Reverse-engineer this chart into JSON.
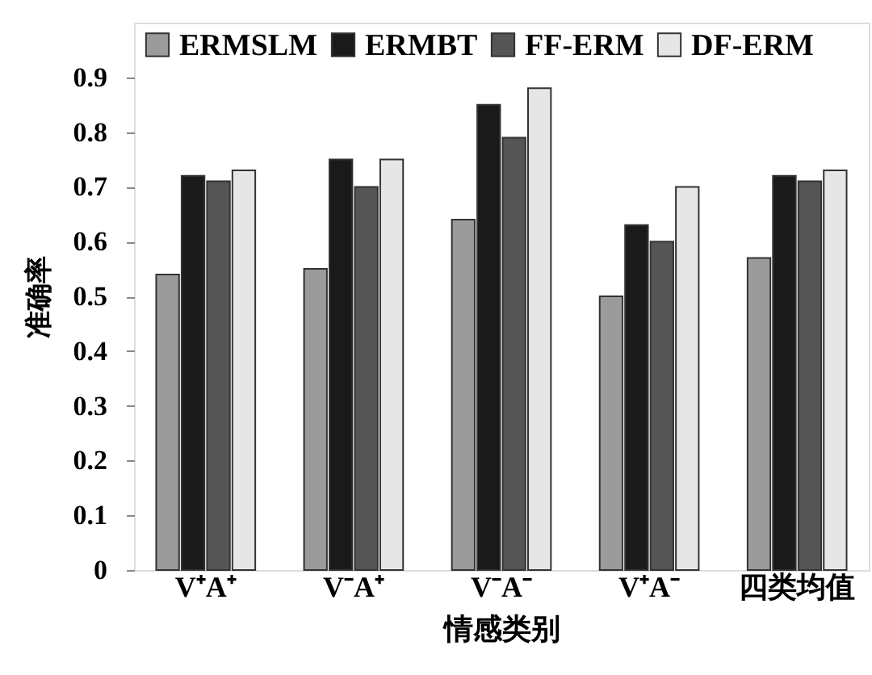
{
  "chart_data": {
    "type": "bar",
    "xlabel": "情感类别",
    "ylabel": "准确率",
    "categories": [
      "V⁺A⁺",
      "V⁻A⁺",
      "V⁻A⁻",
      "V⁺A⁻",
      "四类均值"
    ],
    "series": [
      {
        "name": "ERMSLM",
        "color": "#9b9b9b",
        "values": [
          0.54,
          0.55,
          0.64,
          0.5,
          0.57
        ]
      },
      {
        "name": "ERMBT",
        "color": "#1a1a1a",
        "values": [
          0.72,
          0.75,
          0.85,
          0.63,
          0.72
        ]
      },
      {
        "name": "FF-ERM",
        "color": "#555555",
        "values": [
          0.71,
          0.7,
          0.79,
          0.6,
          0.71
        ]
      },
      {
        "name": "DF-ERM",
        "color": "#e6e6e6",
        "values": [
          0.73,
          0.75,
          0.88,
          0.7,
          0.73
        ]
      }
    ],
    "ylim": [
      0,
      1
    ],
    "yticks": [
      0,
      0.1,
      0.2,
      0.3,
      0.4,
      0.5,
      0.6,
      0.7,
      0.8,
      0.9
    ],
    "legend": "top",
    "grid": false
  }
}
